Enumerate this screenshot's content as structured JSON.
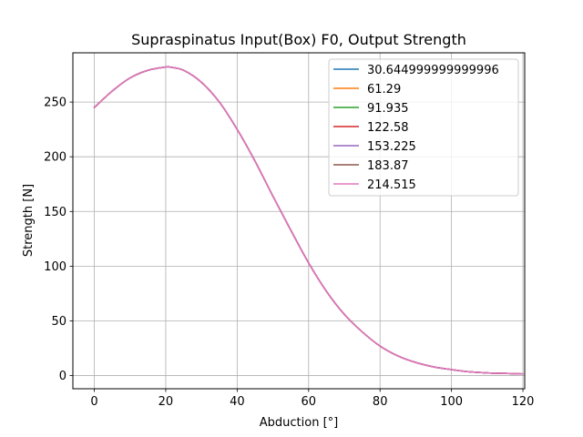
{
  "chart_data": {
    "type": "line",
    "title": "Supraspinatus Input(Box) F0, Output Strength",
    "xlabel": "Abduction [°]",
    "ylabel": "Strength [N]",
    "xlim": [
      -6,
      120.5
    ],
    "ylim": [
      -12,
      295
    ],
    "xticks": [
      0,
      20,
      40,
      60,
      80,
      100,
      120
    ],
    "yticks": [
      0,
      50,
      100,
      150,
      200,
      250
    ],
    "grid": true,
    "legend_position": "top-right",
    "x": [
      0,
      5,
      10,
      15,
      20,
      21,
      25,
      30,
      35,
      40,
      45,
      50,
      55,
      60,
      65,
      70,
      75,
      80,
      85,
      90,
      95,
      100,
      105,
      110,
      115,
      120
    ],
    "series": [
      {
        "name": "30.644999999999996",
        "color": "#1f77b4",
        "values": [
          245,
          260,
          272,
          279,
          282,
          282,
          279,
          268,
          250,
          225,
          196,
          164,
          133,
          103,
          77,
          56,
          40,
          27,
          18,
          12,
          8,
          5.5,
          3.5,
          2.5,
          2,
          1.5
        ]
      },
      {
        "name": "61.29",
        "color": "#ff7f0e",
        "values": [
          245,
          260,
          272,
          279,
          282,
          282,
          279,
          268,
          250,
          225,
          196,
          164,
          133,
          103,
          77,
          56,
          40,
          27,
          18,
          12,
          8,
          5.5,
          3.5,
          2.5,
          2,
          1.5
        ]
      },
      {
        "name": "91.935",
        "color": "#2ca02c",
        "values": [
          245,
          260,
          272,
          279,
          282,
          282,
          279,
          268,
          250,
          225,
          196,
          164,
          133,
          103,
          77,
          56,
          40,
          27,
          18,
          12,
          8,
          5.5,
          3.5,
          2.5,
          2,
          1.5
        ]
      },
      {
        "name": "122.58",
        "color": "#d62728",
        "values": [
          245,
          260,
          272,
          279,
          282,
          282,
          279,
          268,
          250,
          225,
          196,
          164,
          133,
          103,
          77,
          56,
          40,
          27,
          18,
          12,
          8,
          5.5,
          3.5,
          2.5,
          2,
          1.5
        ]
      },
      {
        "name": "153.225",
        "color": "#9467bd",
        "values": [
          245,
          260,
          272,
          279,
          282,
          282,
          279,
          268,
          250,
          225,
          196,
          164,
          133,
          103,
          77,
          56,
          40,
          27,
          18,
          12,
          8,
          5.5,
          3.5,
          2.5,
          2,
          1.5
        ]
      },
      {
        "name": "183.87",
        "color": "#8c564b",
        "values": [
          245,
          260,
          272,
          279,
          282,
          282,
          279,
          268,
          250,
          225,
          196,
          164,
          133,
          103,
          77,
          56,
          40,
          27,
          18,
          12,
          8,
          5.5,
          3.5,
          2.5,
          2,
          1.5
        ]
      },
      {
        "name": "214.515",
        "color": "#e377c2",
        "values": [
          245,
          260,
          272,
          279,
          282,
          282,
          279,
          268,
          250,
          225,
          196,
          164,
          133,
          103,
          77,
          56,
          40,
          27,
          18,
          12,
          8,
          5.5,
          3.5,
          2.5,
          2,
          1.5
        ]
      }
    ]
  }
}
